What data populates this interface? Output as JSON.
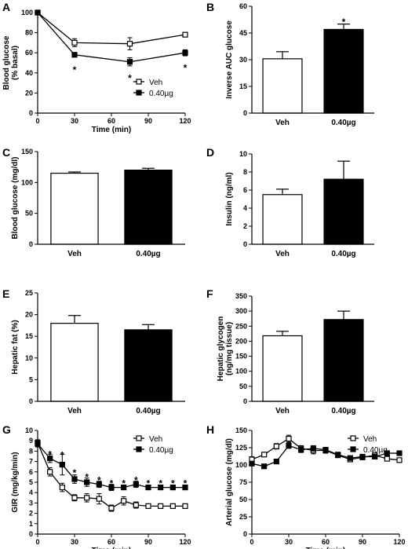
{
  "chart_data": [
    {
      "id": "A",
      "panel_label": "A",
      "type": "line",
      "xlabel": "Time (min)",
      "ylabel": [
        "Blood glucose",
        "(% basal)"
      ],
      "xlim": [
        0,
        120
      ],
      "ylim": [
        0,
        100
      ],
      "xticks": [
        0,
        30,
        60,
        90,
        120
      ],
      "yticks": [
        0,
        20,
        40,
        60,
        80,
        100
      ],
      "legend_position": "bottom-right",
      "series": [
        {
          "name": "Veh",
          "marker": "open-square",
          "x": [
            0,
            30,
            75,
            120
          ],
          "y": [
            100,
            70,
            69,
            78
          ],
          "err": [
            0,
            4,
            6,
            2
          ]
        },
        {
          "name": "0.40µg",
          "marker": "filled-square",
          "x": [
            0,
            30,
            75,
            120
          ],
          "y": [
            100,
            58,
            51,
            60
          ],
          "err": [
            0,
            2,
            4,
            3
          ]
        }
      ],
      "significance": [
        {
          "x": 30,
          "y": 46
        },
        {
          "x": 75,
          "y": 38
        },
        {
          "x": 120,
          "y": 48
        }
      ]
    },
    {
      "id": "B",
      "panel_label": "B",
      "type": "bar",
      "ylabel": [
        "Inverse AUC glucose"
      ],
      "categories": [
        "Veh",
        "0.40µg"
      ],
      "values": [
        30.5,
        47
      ],
      "errors": [
        4,
        3
      ],
      "ylim": [
        0,
        60
      ],
      "yticks": [
        0,
        15,
        30,
        45,
        60
      ],
      "significance": [
        {
          "index": 1,
          "y": 53
        }
      ]
    },
    {
      "id": "C",
      "panel_label": "C",
      "type": "bar",
      "ylabel": [
        "Blood glucose (mg/dl)"
      ],
      "categories": [
        "Veh",
        "0.40µg"
      ],
      "values": [
        115,
        120
      ],
      "errors": [
        2,
        3
      ],
      "ylim": [
        0,
        150
      ],
      "yticks": [
        0,
        50,
        100,
        150
      ]
    },
    {
      "id": "D",
      "panel_label": "D",
      "type": "bar",
      "ylabel": [
        "Insulin (ng/ml)"
      ],
      "categories": [
        "Veh",
        "0.40µg"
      ],
      "values": [
        5.5,
        7.2
      ],
      "errors": [
        0.6,
        2.0
      ],
      "ylim": [
        0,
        10
      ],
      "yticks": [
        0,
        2,
        4,
        6,
        8,
        10
      ]
    },
    {
      "id": "E",
      "panel_label": "E",
      "type": "bar",
      "ylabel": [
        "Hepatic fat (%)"
      ],
      "categories": [
        "Veh",
        "0.40µg"
      ],
      "values": [
        18,
        16.5
      ],
      "errors": [
        1.8,
        1.2
      ],
      "ylim": [
        0,
        25
      ],
      "yticks": [
        0,
        5,
        10,
        15,
        20,
        25
      ]
    },
    {
      "id": "F",
      "panel_label": "F",
      "type": "bar",
      "ylabel": [
        "Hepatic glycogen",
        "(ng/mg tissue)"
      ],
      "categories": [
        "Veh",
        "0.40µg"
      ],
      "values": [
        218,
        272
      ],
      "errors": [
        15,
        28
      ],
      "ylim": [
        0,
        350
      ],
      "yticks": [
        0,
        50,
        100,
        150,
        200,
        250,
        300,
        350
      ]
    },
    {
      "id": "G",
      "panel_label": "G",
      "type": "line",
      "xlabel": "Time (min)",
      "ylabel": [
        "GIR (mg/kg/min)"
      ],
      "xlim": [
        0,
        120
      ],
      "ylim": [
        0,
        10
      ],
      "xticks": [
        0,
        30,
        60,
        90,
        120
      ],
      "yticks": [
        0,
        1,
        2,
        3,
        4,
        5,
        6,
        7,
        8,
        9,
        10
      ],
      "legend_position": "top-right",
      "series": [
        {
          "name": "Veh",
          "marker": "open-square",
          "x": [
            0,
            10,
            20,
            30,
            40,
            50,
            60,
            70,
            80,
            90,
            100,
            110,
            120
          ],
          "y": [
            8.8,
            6.0,
            4.5,
            3.5,
            3.5,
            3.4,
            2.5,
            3.2,
            2.8,
            2.7,
            2.7,
            2.7,
            2.7
          ],
          "err": [
            0.3,
            0.4,
            0.4,
            0.3,
            0.4,
            0.5,
            0.3,
            0.4,
            0.3,
            0.2,
            0.2,
            0.2,
            0.2
          ]
        },
        {
          "name": "0.40µg",
          "marker": "filled-square",
          "x": [
            0,
            10,
            20,
            30,
            40,
            50,
            60,
            70,
            80,
            90,
            100,
            110,
            120
          ],
          "y": [
            8.7,
            7.3,
            6.7,
            5.3,
            5.0,
            4.8,
            4.5,
            4.5,
            4.8,
            4.5,
            4.5,
            4.5,
            4.5
          ],
          "err": [
            0.3,
            0.4,
            1.0,
            0.4,
            0.4,
            0.3,
            0.3,
            0.2,
            0.3,
            0.2,
            0.2,
            0.2,
            0.2
          ]
        }
      ],
      "significance": [
        {
          "x": 10,
          "y": 8.0
        },
        {
          "x": 20,
          "y": 7.9
        },
        {
          "x": 30,
          "y": 6.2
        },
        {
          "x": 40,
          "y": 5.8
        },
        {
          "x": 50,
          "y": 5.5
        },
        {
          "x": 60,
          "y": 5.2
        },
        {
          "x": 70,
          "y": 5.2
        },
        {
          "x": 80,
          "y": 5.5
        },
        {
          "x": 90,
          "y": 5.2
        },
        {
          "x": 100,
          "y": 5.2
        },
        {
          "x": 110,
          "y": 5.2
        },
        {
          "x": 120,
          "y": 5.2
        }
      ]
    },
    {
      "id": "H",
      "panel_label": "H",
      "type": "line",
      "xlabel": "Time (min)",
      "ylabel": [
        "Arterial glucose (mg/dl)"
      ],
      "xlim": [
        0,
        120
      ],
      "ylim": [
        0,
        150
      ],
      "xticks": [
        0,
        30,
        60,
        90,
        120
      ],
      "yticks": [
        0,
        25,
        50,
        75,
        100,
        125,
        150
      ],
      "legend_position": "top-right",
      "series": [
        {
          "name": "Veh",
          "marker": "open-square",
          "x": [
            0,
            10,
            20,
            30,
            40,
            50,
            60,
            70,
            80,
            90,
            100,
            110,
            120
          ],
          "y": [
            108,
            115,
            127,
            138,
            124,
            121,
            121,
            114,
            108,
            111,
            114,
            109,
            107
          ],
          "err": [
            4,
            3,
            4,
            5,
            4,
            5,
            4,
            3,
            3,
            3,
            3,
            3,
            3
          ]
        },
        {
          "name": "0.40µg",
          "marker": "filled-square",
          "x": [
            0,
            10,
            20,
            30,
            40,
            50,
            60,
            70,
            80,
            90,
            100,
            110,
            120
          ],
          "y": [
            102,
            98,
            105,
            128,
            122,
            124,
            122,
            115,
            110,
            112,
            112,
            117,
            117
          ],
          "err": [
            3,
            3,
            3,
            4,
            4,
            4,
            3,
            3,
            3,
            3,
            3,
            3,
            3
          ]
        }
      ]
    }
  ]
}
